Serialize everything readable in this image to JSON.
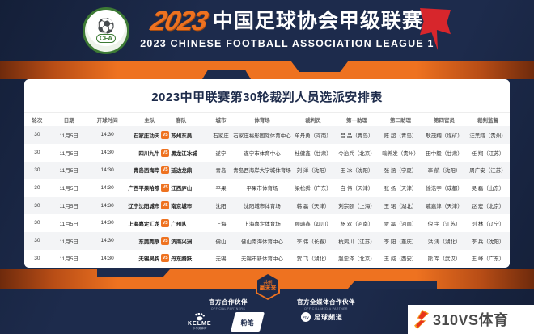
{
  "header": {
    "year_stylized": "2023",
    "title_cn": "中国足球协会甲级联赛",
    "subtitle_en": "2023  CHINESE FOOTBALL ASSOCIATION LEAGUE 1",
    "cfa_logo_text": "CFA"
  },
  "table": {
    "title": "2023中甲联赛第30轮裁判人员选派安排表",
    "columns": [
      "轮次",
      "日期",
      "开球时间",
      "主队",
      "客队",
      "城市",
      "体育场",
      "裁判员",
      "第一助理",
      "第二助理",
      "第四官员",
      "裁判监督"
    ],
    "vs_label": "VS",
    "rows": [
      {
        "round": "30",
        "date": "11月5日",
        "time": "14:30",
        "home": "石家庄功夫",
        "away": "苏州东吴",
        "city": "石家庄",
        "stadium": "石家庄裕彤国际体育中心",
        "referee": "单丹勇（河南）",
        "assistant1": "吕 品（青岛）",
        "assistant2": "陈 超（青岛）",
        "fourth": "耿茂翔（煤矿）",
        "supervisor": "汪黑翔（贵州）"
      },
      {
        "round": "30",
        "date": "11月5日",
        "time": "14:30",
        "home": "四川九牛",
        "away": "黑龙江冰城",
        "city": "遂宁",
        "stadium": "遂宁市体育中心",
        "referee": "杜健鑫（甘肃）",
        "assistant1": "令治兵（北京）",
        "assistant2": "喻养发（贵州）",
        "fourth": "田中毅（甘肃）",
        "supervisor": "任 翔（江苏）"
      },
      {
        "round": "30",
        "date": "11月5日",
        "time": "14:30",
        "home": "青岛西海岸",
        "away": "延边龙鼎",
        "city": "青岛",
        "stadium": "青岛西海岸大学城体育场",
        "referee": "刘 洋（沈阳）",
        "assistant1": "王 冰（沈阳）",
        "assistant2": "张 涵（宁夏）",
        "fourth": "李 航（沈阳）",
        "supervisor": "周广安（江苏）"
      },
      {
        "round": "30",
        "date": "11月5日",
        "time": "14:30",
        "home": "广西平果哈嘹",
        "away": "江西庐山",
        "city": "平果",
        "stadium": "平果市体育场",
        "referee": "梁松舜（广东）",
        "assistant1": "白 伟（天津）",
        "assistant2": "张 扬（天津）",
        "fourth": "徐浩宇（成都）",
        "supervisor": "吴 磊（山东）"
      },
      {
        "round": "30",
        "date": "11月5日",
        "time": "14:30",
        "home": "辽宁沈阳城市",
        "away": "南京城市",
        "city": "沈阳",
        "stadium": "沈阳城市体育场",
        "referee": "韩 磊（天津）",
        "assistant1": "刘宗颐（上海）",
        "assistant2": "王 珺（湖北）",
        "fourth": "戚嘉津（天津）",
        "supervisor": "赵 宏（北京）"
      },
      {
        "round": "30",
        "date": "11月5日",
        "time": "14:30",
        "home": "上海嘉定汇龙",
        "away": "广州队",
        "city": "上海",
        "stadium": "上海嘉定体育场",
        "referee": "顾瑞鑫（四川）",
        "assistant1": "杨 欢（河南）",
        "assistant2": "贾 磊（河南）",
        "fourth": "倪 宇（江苏）",
        "supervisor": "刘 林（辽宁）"
      },
      {
        "round": "30",
        "date": "11月5日",
        "time": "14:30",
        "home": "东莞莞联",
        "away": "济南兴洲",
        "city": "佛山",
        "stadium": "佛山南海体育中心",
        "referee": "李 伟（长春）",
        "assistant1": "杭鸿川（江苏）",
        "assistant2": "李 阳（重庆）",
        "fourth": "洪 涛（湖北）",
        "supervisor": "李 兵（沈阳）"
      },
      {
        "round": "30",
        "date": "11月5日",
        "time": "14:30",
        "home": "无锡吴钩",
        "away": "丹东腾跃",
        "city": "无锡",
        "stadium": "无锡市新体育中心",
        "referee": "贺 飞（湖北）",
        "assistant1": "赵忠泽（北京）",
        "assistant2": "王 威（西安）",
        "fourth": "熊 军（武汉）",
        "supervisor": "王 峰（广东）"
      }
    ]
  },
  "footer": {
    "badge_line1": "共创",
    "badge_line2": "赢未来",
    "partners_label_cn": "官方合作伙伴",
    "partners_label_en": "OFFICIAL PARTNERS",
    "media_label_cn": "官方全媒体合作伙伴",
    "media_label_en": "OFFICIAL MEDIA PARTNER",
    "kelme_name": "KELME",
    "kelme_sub": "卡尔美体育",
    "fenbi_name": "粉笔",
    "football_channel_name": "足球频道",
    "football_channel_icon_text": "FTV",
    "watermark_text": "310VS体育"
  },
  "colors": {
    "accent_orange": "#ee7220",
    "navy_background": "#1d2b4c",
    "flag_red": "#d7262c",
    "card_white": "#ffffff",
    "row_alt_gray": "#f3f4f6",
    "watermark_red": "#e8341c",
    "watermark_yellow": "#f59d1d"
  }
}
